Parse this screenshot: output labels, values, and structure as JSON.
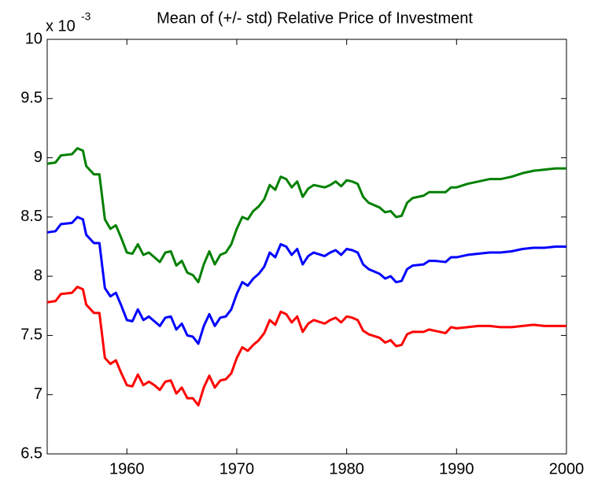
{
  "chart_data": {
    "type": "line",
    "title": "Mean of (+/- std) Relative Price of Investment",
    "y_exponent_base": "x 10",
    "y_exponent": "-3",
    "x": [
      1952.75,
      1953.5,
      1954,
      1955,
      1955.5,
      1956,
      1956.3,
      1957,
      1957.5,
      1958,
      1958.5,
      1959,
      1959.5,
      1960,
      1960.5,
      1961,
      1961.5,
      1962,
      1962.5,
      1963,
      1963.5,
      1964,
      1964.5,
      1965,
      1965.5,
      1966,
      1966.5,
      1967,
      1967.5,
      1968,
      1968.5,
      1969,
      1969.5,
      1970,
      1970.5,
      1971,
      1971.5,
      1972,
      1972.5,
      1973,
      1973.5,
      1974,
      1974.5,
      1975,
      1975.5,
      1976,
      1976.5,
      1977,
      1978,
      1978.5,
      1979,
      1979.5,
      1980,
      1980.5,
      1981,
      1981.5,
      1982,
      1983,
      1983.5,
      1984,
      1984.5,
      1985,
      1985.5,
      1986,
      1987,
      1987.5,
      1988,
      1989,
      1989.5,
      1990,
      1991,
      1992,
      1993,
      1994,
      1995,
      1996,
      1997,
      1998,
      1999,
      2000
    ],
    "series": [
      {
        "color": "#008000",
        "values": [
          8.95,
          8.96,
          9.02,
          9.03,
          9.08,
          9.06,
          8.93,
          8.86,
          8.86,
          8.48,
          8.4,
          8.43,
          8.32,
          8.2,
          8.19,
          8.27,
          8.18,
          8.2,
          8.16,
          8.12,
          8.2,
          8.21,
          8.09,
          8.13,
          8.03,
          8.01,
          7.95,
          8.1,
          8.21,
          8.1,
          8.18,
          8.2,
          8.27,
          8.4,
          8.5,
          8.48,
          8.55,
          8.59,
          8.65,
          8.77,
          8.73,
          8.84,
          8.82,
          8.75,
          8.8,
          8.67,
          8.74,
          8.77,
          8.75,
          8.77,
          8.8,
          8.76,
          8.81,
          8.8,
          8.78,
          8.67,
          8.62,
          8.58,
          8.54,
          8.55,
          8.5,
          8.51,
          8.62,
          8.66,
          8.68,
          8.71,
          8.71,
          8.71,
          8.75,
          8.75,
          8.78,
          8.8,
          8.82,
          8.82,
          8.84,
          8.87,
          8.89,
          8.9,
          8.91,
          8.91
        ]
      },
      {
        "color": "#0000ff",
        "values": [
          8.37,
          8.38,
          8.44,
          8.45,
          8.5,
          8.48,
          8.35,
          8.28,
          8.28,
          7.9,
          7.83,
          7.86,
          7.75,
          7.63,
          7.62,
          7.72,
          7.63,
          7.66,
          7.62,
          7.58,
          7.65,
          7.66,
          7.55,
          7.6,
          7.5,
          7.49,
          7.43,
          7.58,
          7.68,
          7.58,
          7.65,
          7.66,
          7.72,
          7.85,
          7.95,
          7.92,
          7.98,
          8.02,
          8.08,
          8.2,
          8.16,
          8.27,
          8.25,
          8.18,
          8.23,
          8.1,
          8.17,
          8.2,
          8.17,
          8.2,
          8.22,
          8.18,
          8.23,
          8.22,
          8.2,
          8.1,
          8.06,
          8.02,
          7.98,
          8.0,
          7.95,
          7.96,
          8.06,
          8.09,
          8.1,
          8.13,
          8.13,
          8.12,
          8.16,
          8.16,
          8.18,
          8.19,
          8.2,
          8.2,
          8.21,
          8.23,
          8.24,
          8.24,
          8.25,
          8.25
        ]
      },
      {
        "color": "#ff0000",
        "values": [
          7.78,
          7.79,
          7.85,
          7.86,
          7.91,
          7.89,
          7.76,
          7.69,
          7.69,
          7.31,
          7.26,
          7.29,
          7.18,
          7.08,
          7.07,
          7.17,
          7.08,
          7.11,
          7.08,
          7.04,
          7.11,
          7.12,
          7.01,
          7.06,
          6.97,
          6.97,
          6.91,
          7.06,
          7.16,
          7.06,
          7.12,
          7.13,
          7.18,
          7.31,
          7.4,
          7.37,
          7.42,
          7.46,
          7.52,
          7.63,
          7.59,
          7.7,
          7.68,
          7.61,
          7.66,
          7.53,
          7.6,
          7.63,
          7.6,
          7.63,
          7.65,
          7.61,
          7.66,
          7.65,
          7.63,
          7.54,
          7.51,
          7.48,
          7.44,
          7.46,
          7.41,
          7.42,
          7.51,
          7.53,
          7.53,
          7.55,
          7.54,
          7.52,
          7.57,
          7.56,
          7.57,
          7.58,
          7.58,
          7.57,
          7.57,
          7.58,
          7.59,
          7.58,
          7.58,
          7.58
        ]
      }
    ],
    "xlim": [
      1952.75,
      2000
    ],
    "xticks": [
      1960,
      1970,
      1980,
      1990,
      2000
    ],
    "ylim": [
      6.5,
      10
    ],
    "yticks": [
      6.5,
      7,
      7.5,
      8,
      8.5,
      9,
      9.5,
      10
    ]
  }
}
